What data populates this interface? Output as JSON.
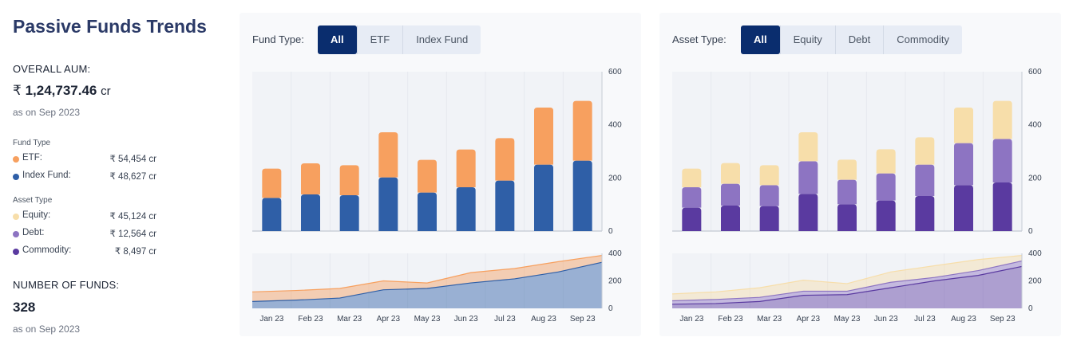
{
  "summary": {
    "title": "Passive Funds Trends",
    "overall_aum_label": "OVERALL AUM:",
    "overall_aum_currency": "₹",
    "overall_aum_value": "1,24,737.46",
    "overall_aum_unit": "cr",
    "overall_aum_asof": "as on Sep 2023",
    "fund_type_label": "Fund Type",
    "fund_types": [
      {
        "name": "ETF:",
        "value": "₹ 54,454 cr",
        "color": "#f7a05f"
      },
      {
        "name": "Index Fund:",
        "value": "₹ 48,627 cr",
        "color": "#2f5fa7"
      }
    ],
    "asset_type_label": "Asset Type",
    "asset_types": [
      {
        "name": "Equity:",
        "value": "₹ 45,124 cr",
        "color": "#f7deaa"
      },
      {
        "name": "Debt:",
        "value": "₹ 12,564 cr",
        "color": "#8d74c2"
      },
      {
        "name": "Commodity:",
        "value": "₹ 8,497 cr",
        "color": "#5a3aa0"
      }
    ],
    "num_funds_label": "NUMBER OF FUNDS:",
    "num_funds_value": "328",
    "num_funds_asof": "as on Sep 2023"
  },
  "panel_fund": {
    "filter_label": "Fund Type:",
    "options": [
      "All",
      "ETF",
      "Index Fund"
    ],
    "selected": "All"
  },
  "panel_asset": {
    "filter_label": "Asset Type:",
    "options": [
      "All",
      "Equity",
      "Debt",
      "Commodity"
    ],
    "selected": "All"
  },
  "colors": {
    "accent": "#0a2d6e",
    "etf": "#f7a05f",
    "index_fund": "#2f5fa7",
    "equity": "#f7deaa",
    "debt": "#8d74c2",
    "commodity": "#5a3aa0"
  },
  "chart_data": [
    {
      "type": "bar",
      "stacked": true,
      "categories": [
        "Jan 23",
        "Feb 23",
        "Mar 23",
        "Apr 23",
        "May 23",
        "Jun 23",
        "Jul 23",
        "Aug 23",
        "Sep 23"
      ],
      "series": [
        {
          "name": "Index Fund",
          "color": "#2f5fa7",
          "values": [
            125,
            138,
            135,
            202,
            145,
            165,
            190,
            250,
            265
          ]
        },
        {
          "name": "ETF",
          "color": "#f7a05f",
          "values": [
            110,
            117,
            113,
            170,
            123,
            142,
            160,
            215,
            225
          ]
        }
      ],
      "ylim": [
        0,
        600
      ],
      "yticks": [
        0,
        200,
        400,
        600
      ],
      "axis_position": "right",
      "grid": false
    },
    {
      "type": "area",
      "stacked": true,
      "categories": [
        "Jan 23",
        "Feb 23",
        "Mar 23",
        "Apr 23",
        "May 23",
        "Jun 23",
        "Jul 23",
        "Aug 23",
        "Sep 23"
      ],
      "series": [
        {
          "name": "Index Fund",
          "color": "#2f5fa7",
          "values": [
            50,
            60,
            75,
            135,
            145,
            185,
            215,
            265,
            335
          ]
        },
        {
          "name": "ETF",
          "color": "#f7a05f",
          "values": [
            70,
            70,
            70,
            65,
            40,
            75,
            75,
            75,
            50
          ]
        }
      ],
      "ylim": [
        0,
        400
      ],
      "yticks": [
        0,
        200,
        400
      ],
      "axis_position": "right"
    },
    {
      "type": "bar",
      "stacked": true,
      "categories": [
        "Jan 23",
        "Feb 23",
        "Mar 23",
        "Apr 23",
        "May 23",
        "Jun 23",
        "Jul 23",
        "Aug 23",
        "Sep 23"
      ],
      "series": [
        {
          "name": "Commodity",
          "color": "#5a3aa0",
          "values": [
            88,
            96,
            94,
            140,
            101,
            115,
            132,
            173,
            183
          ]
        },
        {
          "name": "Debt",
          "color": "#8d74c2",
          "values": [
            77,
            82,
            79,
            123,
            92,
            102,
            118,
            158,
            164
          ]
        },
        {
          "name": "Equity",
          "color": "#f7deaa",
          "values": [
            70,
            78,
            75,
            109,
            76,
            91,
            103,
            134,
            143
          ]
        }
      ],
      "ylim": [
        0,
        600
      ],
      "yticks": [
        0,
        200,
        400,
        600
      ],
      "axis_position": "right",
      "grid": false
    },
    {
      "type": "area",
      "stacked": true,
      "categories": [
        "Jan 23",
        "Feb 23",
        "Mar 23",
        "Apr 23",
        "May 23",
        "Jun 23",
        "Jul 23",
        "Aug 23",
        "Sep 23"
      ],
      "series": [
        {
          "name": "Commodity",
          "color": "#5a3aa0",
          "values": [
            30,
            35,
            50,
            95,
            100,
            150,
            200,
            240,
            305
          ]
        },
        {
          "name": "Debt",
          "color": "#8d74c2",
          "values": [
            25,
            30,
            30,
            30,
            25,
            40,
            25,
            35,
            40
          ]
        },
        {
          "name": "Equity",
          "color": "#f7deaa",
          "values": [
            50,
            55,
            70,
            80,
            55,
            75,
            85,
            80,
            40
          ]
        }
      ],
      "ylim": [
        0,
        400
      ],
      "yticks": [
        0,
        200,
        400
      ],
      "axis_position": "right"
    }
  ]
}
